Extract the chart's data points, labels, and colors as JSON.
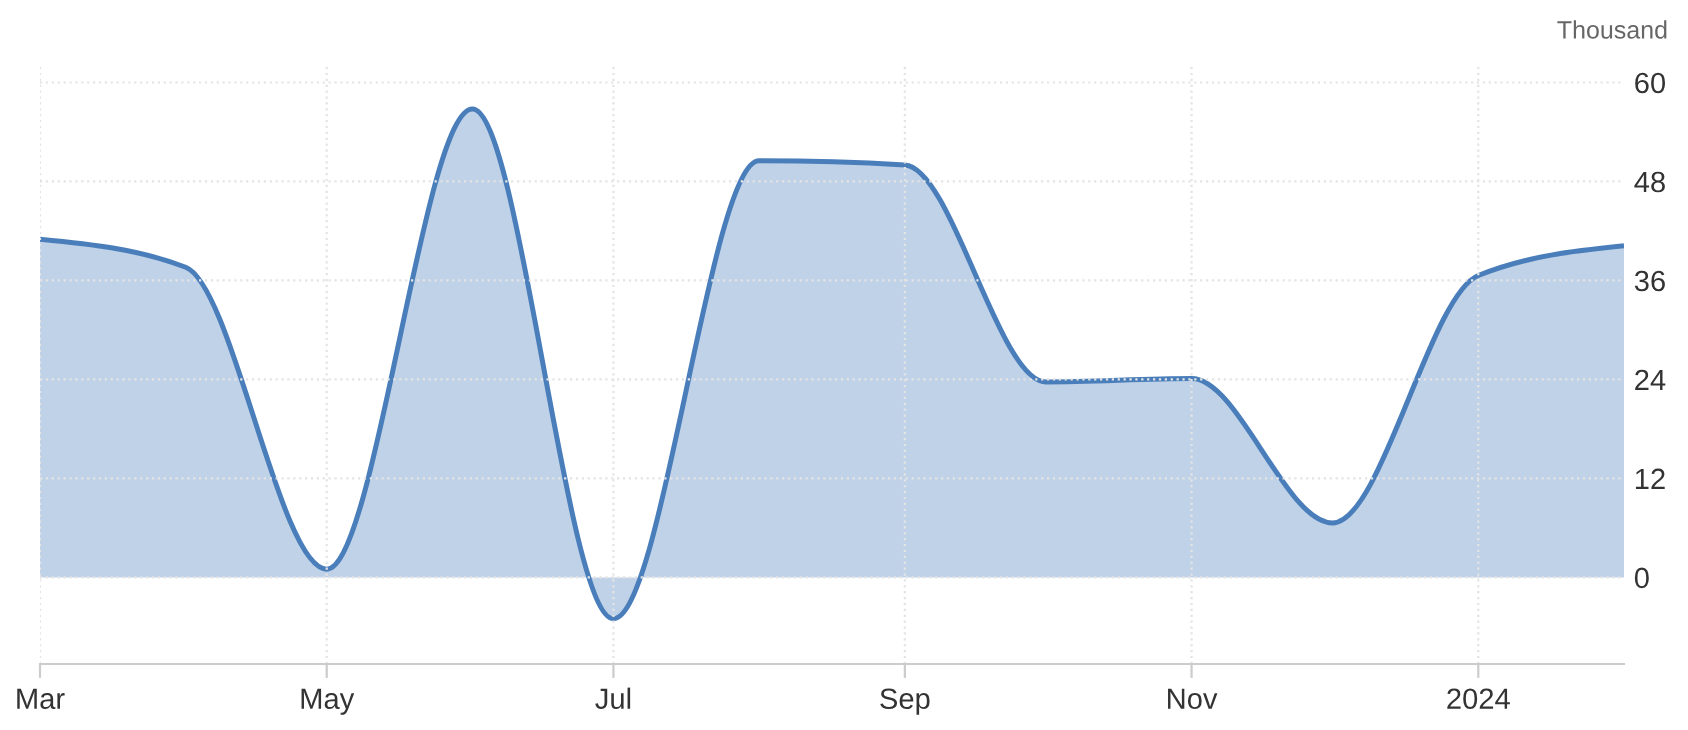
{
  "chart_data": {
    "type": "area",
    "ylabel": "Thousand",
    "x": [
      "2023-03-01",
      "2023-04-01",
      "2023-05-01",
      "2023-06-01",
      "2023-07-01",
      "2023-08-01",
      "2023-09-01",
      "2023-10-01",
      "2023-11-01",
      "2023-12-01",
      "2024-01-01",
      "2024-02-01"
    ],
    "series": [
      {
        "color": "#4a7ebb",
        "values": [
          41,
          37.6,
          1,
          56.8,
          -5,
          50.5,
          50,
          23.7,
          24.1,
          6.6,
          36.6,
          40.2
        ]
      }
    ],
    "xlim": [
      "2023-03-01",
      "2024-02-01"
    ],
    "xticks": [
      {
        "value": "2023-03-01",
        "label": "Mar"
      },
      {
        "value": "2023-05-01",
        "label": "May"
      },
      {
        "value": "2023-07-01",
        "label": "Jul"
      },
      {
        "value": "2023-09-01",
        "label": "Sep"
      },
      {
        "value": "2023-11-01",
        "label": "Nov"
      },
      {
        "value": "2024-01-01",
        "label": "2024"
      }
    ],
    "ylim": [
      -10.5,
      62
    ],
    "yticks": [
      0,
      12,
      24,
      36,
      48,
      60
    ],
    "grid": true
  }
}
